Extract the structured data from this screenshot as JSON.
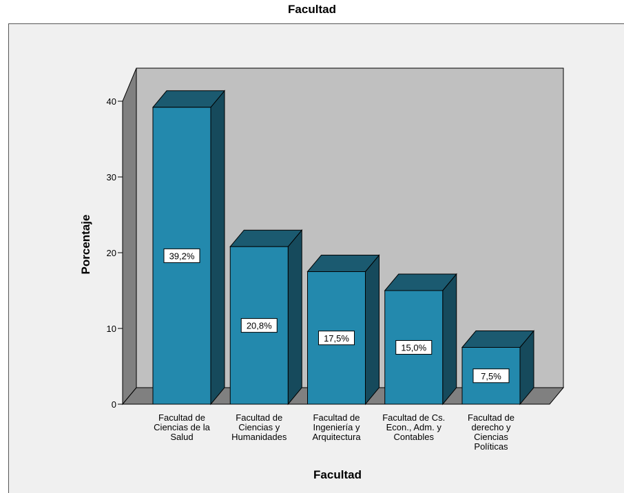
{
  "chart_data": {
    "type": "bar",
    "title": "Facultad",
    "xlabel": "Facultad",
    "ylabel": "Porcentaje",
    "ylim": [
      0,
      40
    ],
    "yticks": [
      0,
      10,
      20,
      30,
      40
    ],
    "categories": [
      [
        "Facultad de",
        "Ciencias de la",
        "Salud"
      ],
      [
        "Facultad de",
        "Ciencias y",
        "Humanidades"
      ],
      [
        "Facultad de",
        "Ingeniería y",
        "Arquitectura"
      ],
      [
        "Facultad de Cs.",
        "Econ., Adm. y",
        "Contables"
      ],
      [
        "Facultad de",
        "derecho y",
        "Ciencias",
        "Políticas"
      ]
    ],
    "values": [
      39.2,
      20.8,
      17.5,
      15.0,
      7.5
    ],
    "data_labels": [
      "39,2%",
      "20,8%",
      "17,5%",
      "15,0%",
      "7,5%"
    ],
    "colors": {
      "bar_front": "#2389ad",
      "bar_side": "#164a5c",
      "bar_top": "#1b5a70",
      "back_wall": "#c0c0c0",
      "side_wall": "#808080",
      "floor": "#808080",
      "frame_bg": "#f0f0f0"
    }
  }
}
